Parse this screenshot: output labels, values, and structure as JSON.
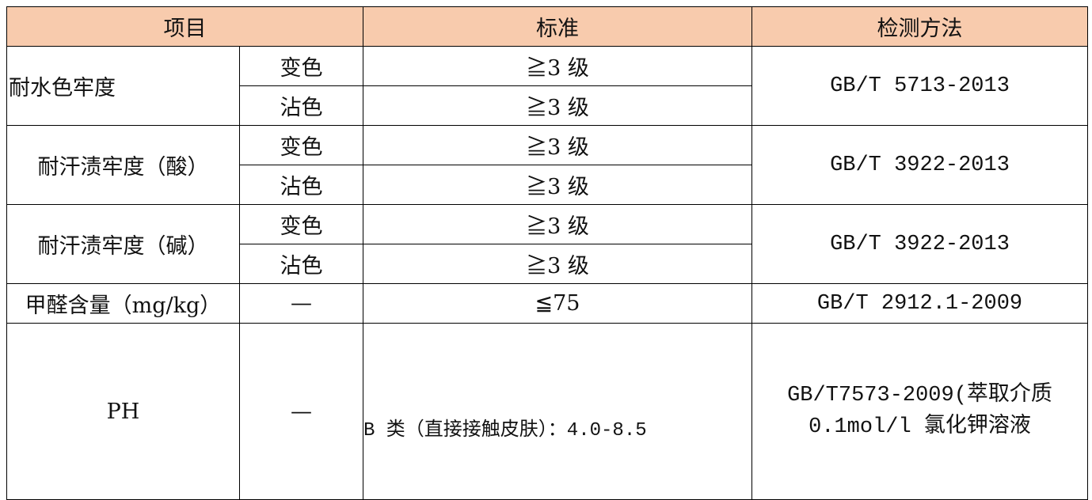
{
  "header": {
    "item": "项目",
    "standard": "标准",
    "method": "检测方法"
  },
  "header_color": "#F8CBAD",
  "rows": [
    {
      "item": "耐水色牢度",
      "subs": [
        {
          "sub": "变色",
          "standard": "≧3 级"
        },
        {
          "sub": "沾色",
          "standard": "≧3 级"
        }
      ],
      "method": "GB/T 5713-2013"
    },
    {
      "item": "耐汗渍牢度（酸）",
      "subs": [
        {
          "sub": "变色",
          "standard": "≧3 级"
        },
        {
          "sub": "沾色",
          "standard": "≧3 级"
        }
      ],
      "method": "GB/T 3922-2013"
    },
    {
      "item": "耐汗渍牢度（碱）",
      "subs": [
        {
          "sub": "变色",
          "standard": "≧3 级"
        },
        {
          "sub": "沾色",
          "standard": "≧3 级"
        }
      ],
      "method": "GB/T 3922-2013"
    },
    {
      "item": "甲醛含量（mg/kg）",
      "sub": "—",
      "standard": "≦75",
      "method": "GB/T 2912.1-2009"
    },
    {
      "item": "PH",
      "sub": "—",
      "standard": "B 类（直接接触皮肤）：4.0-8.5",
      "method_lines": [
        "GB/T7573-2009(萃取介质",
        "0.1mol/l 氯化钾溶液"
      ]
    }
  ]
}
